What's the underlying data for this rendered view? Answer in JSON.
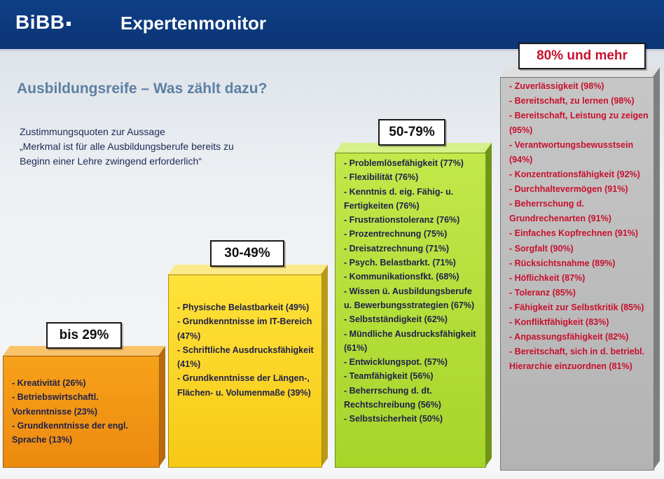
{
  "header": {
    "logo": "BiBB",
    "title": "Expertenmonitor"
  },
  "page_title": "Ausbildungsreife – Was zählt dazu?",
  "subtitle": [
    "Zustimmungsquoten zur Aussage",
    "„Merkmal ist für alle Ausbildungsberufe bereits zu",
    "Beginn einer Lehre zwingend erforderlich“"
  ],
  "colors": {
    "header": "#0b3576",
    "bar1": "#ec8a10",
    "bar2": "#f6c915",
    "bar3": "#a6d52a",
    "bar4": "#b3b3b3",
    "highlight_text": "#c8102e"
  },
  "groups": [
    {
      "label": "bis 29%",
      "items": [
        "- Kreativität (26%)",
        "- Betriebswirtschaftl. Vorkenntnisse (23%)",
        "- Grundkenntnisse der engl. Sprache (13%)"
      ]
    },
    {
      "label": "30-49%",
      "items": [
        "- Physische Belastbarkeit (49%)",
        "- Grundkenntnisse im IT-Bereich (47%)",
        "- Schriftliche Ausdrucksfähigkeit (41%)",
        "- Grundkenntnisse der Längen-, Flächen- u. Volumenmaße (39%)"
      ]
    },
    {
      "label": "50-79%",
      "items": [
        "- Problemlösefähigkeit (77%)",
        "- Flexibilität (76%)",
        "- Kenntnis d. eig. Fähig- u. Fertigkeiten (76%)",
        "- Frustrationstoleranz (76%)",
        "- Prozentrechnung (75%)",
        "- Dreisatzrechnung (71%)",
        "- Psych. Belastbarkt. (71%)",
        "- Kommunikationsfkt. (68%)",
        "- Wissen ü. Ausbildungsberufe u. Bewerbungsstrategien (67%)",
        "- Selbstständigkeit (62%)",
        "- Mündliche Ausdrucksfähigkeit (61%)",
        "- Entwicklungspot. (57%)",
        "- Teamfähigkeit (56%)",
        "- Beherrschung d. dt. Rechtschreibung (56%)",
        "- Selbstsicherheit (50%)"
      ]
    },
    {
      "label": "80% und mehr",
      "items": [
        "- Zuverlässigkeit (98%)",
        "- Bereitschaft, zu lernen (98%)",
        "- Bereitschaft, Leistung zu zeigen (95%)",
        "- Verantwortungsbewusstsein (94%)",
        "- Konzentrationsfähigkeit (92%)",
        "- Durchhaltevermögen (91%)",
        "- Beherrschung d. Grundrechenarten (91%)",
        "- Einfaches Kopfrechnen (91%)",
        "- Sorgfalt (90%)",
        "- Rücksichtsnahme (89%)",
        "- Höflichkeit (87%)",
        "- Toleranz (85%)",
        "- Fähigkeit zur Selbstkritik (85%)",
        "- Konfliktfähigkeit (83%)",
        "- Anpassungsfähigkeit (82%)",
        "- Bereitschaft, sich in d. betriebl. Hierarchie einzuordnen (81%)"
      ]
    }
  ]
}
